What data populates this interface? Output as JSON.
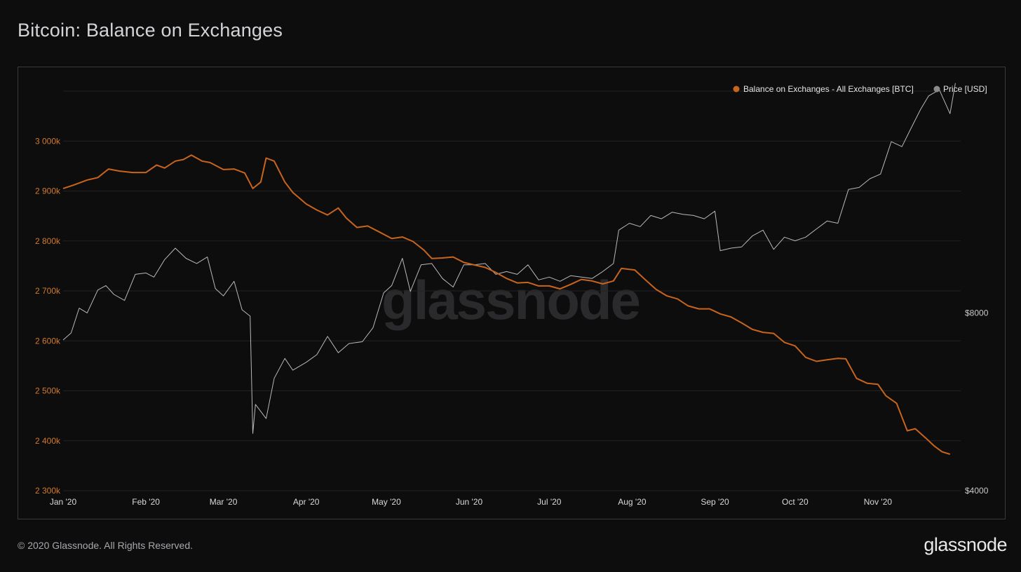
{
  "title": "Bitcoin: Balance on Exchanges",
  "footer": "© 2020 Glassnode. All Rights Reserved.",
  "brand": "glassnode",
  "watermark": "glassnode",
  "colors": {
    "balance": "#c8641c",
    "price": "#b9b9bc",
    "grid": "#232326",
    "background": "#0d0d0e"
  },
  "chart_data": {
    "type": "line",
    "title": "Bitcoin: Balance on Exchanges",
    "legend_placement": "top-right",
    "grid": true,
    "x_ticks": [
      "Jan '20",
      "Feb '20",
      "Mar '20",
      "Apr '20",
      "May '20",
      "Jun '20",
      "Jul '20",
      "Aug '20",
      "Sep '20",
      "Oct '20",
      "Nov '20"
    ],
    "x_tick_dates": [
      "2020-01-01",
      "2020-02-01",
      "2020-03-01",
      "2020-04-01",
      "2020-05-01",
      "2020-06-01",
      "2020-07-01",
      "2020-08-01",
      "2020-09-01",
      "2020-10-01",
      "2020-11-01"
    ],
    "y_left": {
      "ticks": [
        2300000,
        2400000,
        2500000,
        2600000,
        2700000,
        2800000,
        2900000,
        3000000
      ],
      "tick_labels": [
        "2 300k",
        "2 400k",
        "2 500k",
        "2 600k",
        "2 700k",
        "2 800k",
        "2 900k",
        "3 000k"
      ],
      "range": [
        2300000,
        3100000
      ]
    },
    "y_right": {
      "ticks": [
        4000,
        8000
      ],
      "tick_labels": [
        "$4000",
        "$8000"
      ],
      "scale": "log",
      "range": [
        4000,
        19000
      ]
    },
    "series": [
      {
        "name": "Balance on Exchanges - All Exchanges [BTC]",
        "axis": "left",
        "color": "#c8641c",
        "points": [
          [
            "2020-01-01",
            2905000
          ],
          [
            "2020-01-05",
            2912000
          ],
          [
            "2020-01-10",
            2922000
          ],
          [
            "2020-01-14",
            2927000
          ],
          [
            "2020-01-18",
            2944000
          ],
          [
            "2020-01-22",
            2940000
          ],
          [
            "2020-01-27",
            2937000
          ],
          [
            "2020-02-01",
            2937000
          ],
          [
            "2020-02-05",
            2952000
          ],
          [
            "2020-02-08",
            2946000
          ],
          [
            "2020-02-12",
            2960000
          ],
          [
            "2020-02-15",
            2963000
          ],
          [
            "2020-02-18",
            2972000
          ],
          [
            "2020-02-22",
            2960000
          ],
          [
            "2020-02-25",
            2957000
          ],
          [
            "2020-03-01",
            2943000
          ],
          [
            "2020-03-05",
            2944000
          ],
          [
            "2020-03-09",
            2936000
          ],
          [
            "2020-03-12",
            2905000
          ],
          [
            "2020-03-15",
            2918000
          ],
          [
            "2020-03-17",
            2966000
          ],
          [
            "2020-03-20",
            2960000
          ],
          [
            "2020-03-24",
            2918000
          ],
          [
            "2020-03-27",
            2897000
          ],
          [
            "2020-04-01",
            2874000
          ],
          [
            "2020-04-05",
            2862000
          ],
          [
            "2020-04-09",
            2852000
          ],
          [
            "2020-04-13",
            2866000
          ],
          [
            "2020-04-16",
            2846000
          ],
          [
            "2020-04-20",
            2827000
          ],
          [
            "2020-04-24",
            2830000
          ],
          [
            "2020-04-28",
            2819000
          ],
          [
            "2020-05-03",
            2805000
          ],
          [
            "2020-05-07",
            2808000
          ],
          [
            "2020-05-11",
            2799000
          ],
          [
            "2020-05-15",
            2782000
          ],
          [
            "2020-05-18",
            2765000
          ],
          [
            "2020-05-22",
            2766000
          ],
          [
            "2020-05-26",
            2768000
          ],
          [
            "2020-05-30",
            2757000
          ],
          [
            "2020-06-03",
            2752000
          ],
          [
            "2020-06-07",
            2747000
          ],
          [
            "2020-06-11",
            2737000
          ],
          [
            "2020-06-15",
            2725000
          ],
          [
            "2020-06-19",
            2716000
          ],
          [
            "2020-06-23",
            2717000
          ],
          [
            "2020-06-27",
            2710000
          ],
          [
            "2020-07-01",
            2710000
          ],
          [
            "2020-07-05",
            2704000
          ],
          [
            "2020-07-09",
            2713000
          ],
          [
            "2020-07-13",
            2723000
          ],
          [
            "2020-07-17",
            2720000
          ],
          [
            "2020-07-21",
            2714000
          ],
          [
            "2020-07-25",
            2720000
          ],
          [
            "2020-07-28",
            2745000
          ],
          [
            "2020-08-02",
            2742000
          ],
          [
            "2020-08-06",
            2722000
          ],
          [
            "2020-08-10",
            2703000
          ],
          [
            "2020-08-14",
            2690000
          ],
          [
            "2020-08-18",
            2684000
          ],
          [
            "2020-08-22",
            2670000
          ],
          [
            "2020-08-26",
            2664000
          ],
          [
            "2020-08-30",
            2664000
          ],
          [
            "2020-09-03",
            2654000
          ],
          [
            "2020-09-07",
            2648000
          ],
          [
            "2020-09-11",
            2636000
          ],
          [
            "2020-09-15",
            2623000
          ],
          [
            "2020-09-19",
            2617000
          ],
          [
            "2020-09-23",
            2615000
          ],
          [
            "2020-09-27",
            2597000
          ],
          [
            "2020-10-01",
            2590000
          ],
          [
            "2020-10-05",
            2567000
          ],
          [
            "2020-10-09",
            2559000
          ],
          [
            "2020-10-13",
            2562000
          ],
          [
            "2020-10-17",
            2565000
          ],
          [
            "2020-10-20",
            2564000
          ],
          [
            "2020-10-24",
            2525000
          ],
          [
            "2020-10-28",
            2515000
          ],
          [
            "2020-11-01",
            2513000
          ],
          [
            "2020-11-04",
            2490000
          ],
          [
            "2020-11-08",
            2475000
          ],
          [
            "2020-11-12",
            2420000
          ],
          [
            "2020-11-15",
            2424000
          ],
          [
            "2020-11-19",
            2405000
          ],
          [
            "2020-11-22",
            2390000
          ],
          [
            "2020-11-25",
            2378000
          ],
          [
            "2020-11-28",
            2373000
          ]
        ]
      },
      {
        "name": "Price [USD]",
        "axis": "right",
        "color": "#b9b9bc",
        "points": [
          [
            "2020-01-01",
            7200
          ],
          [
            "2020-01-04",
            7400
          ],
          [
            "2020-01-07",
            8150
          ],
          [
            "2020-01-10",
            8000
          ],
          [
            "2020-01-14",
            8750
          ],
          [
            "2020-01-17",
            8900
          ],
          [
            "2020-01-20",
            8600
          ],
          [
            "2020-01-24",
            8400
          ],
          [
            "2020-01-28",
            9300
          ],
          [
            "2020-02-01",
            9350
          ],
          [
            "2020-02-04",
            9200
          ],
          [
            "2020-02-08",
            9850
          ],
          [
            "2020-02-12",
            10300
          ],
          [
            "2020-02-16",
            9900
          ],
          [
            "2020-02-20",
            9700
          ],
          [
            "2020-02-24",
            9950
          ],
          [
            "2020-02-27",
            8800
          ],
          [
            "2020-03-01",
            8550
          ],
          [
            "2020-03-05",
            9050
          ],
          [
            "2020-03-08",
            8100
          ],
          [
            "2020-03-11",
            7900
          ],
          [
            "2020-03-12",
            5000
          ],
          [
            "2020-03-13",
            5600
          ],
          [
            "2020-03-17",
            5300
          ],
          [
            "2020-03-20",
            6200
          ],
          [
            "2020-03-24",
            6700
          ],
          [
            "2020-03-27",
            6400
          ],
          [
            "2020-04-01",
            6600
          ],
          [
            "2020-04-05",
            6800
          ],
          [
            "2020-04-09",
            7300
          ],
          [
            "2020-04-13",
            6850
          ],
          [
            "2020-04-17",
            7100
          ],
          [
            "2020-04-22",
            7150
          ],
          [
            "2020-04-26",
            7550
          ],
          [
            "2020-04-30",
            8650
          ],
          [
            "2020-05-03",
            8900
          ],
          [
            "2020-05-07",
            9900
          ],
          [
            "2020-05-10",
            8700
          ],
          [
            "2020-05-14",
            9650
          ],
          [
            "2020-05-18",
            9700
          ],
          [
            "2020-05-22",
            9150
          ],
          [
            "2020-05-26",
            8850
          ],
          [
            "2020-05-30",
            9650
          ],
          [
            "2020-06-03",
            9650
          ],
          [
            "2020-06-07",
            9700
          ],
          [
            "2020-06-11",
            9300
          ],
          [
            "2020-06-15",
            9400
          ],
          [
            "2020-06-19",
            9300
          ],
          [
            "2020-06-23",
            9650
          ],
          [
            "2020-06-27",
            9100
          ],
          [
            "2020-07-01",
            9200
          ],
          [
            "2020-07-05",
            9050
          ],
          [
            "2020-07-09",
            9250
          ],
          [
            "2020-07-13",
            9200
          ],
          [
            "2020-07-17",
            9150
          ],
          [
            "2020-07-21",
            9400
          ],
          [
            "2020-07-25",
            9700
          ],
          [
            "2020-07-27",
            11050
          ],
          [
            "2020-07-31",
            11350
          ],
          [
            "2020-08-04",
            11200
          ],
          [
            "2020-08-08",
            11700
          ],
          [
            "2020-08-12",
            11550
          ],
          [
            "2020-08-16",
            11850
          ],
          [
            "2020-08-20",
            11750
          ],
          [
            "2020-08-24",
            11700
          ],
          [
            "2020-08-28",
            11550
          ],
          [
            "2020-09-01",
            11900
          ],
          [
            "2020-09-03",
            10200
          ],
          [
            "2020-09-07",
            10300
          ],
          [
            "2020-09-11",
            10350
          ],
          [
            "2020-09-15",
            10800
          ],
          [
            "2020-09-19",
            11050
          ],
          [
            "2020-09-23",
            10250
          ],
          [
            "2020-09-27",
            10750
          ],
          [
            "2020-10-01",
            10600
          ],
          [
            "2020-10-05",
            10750
          ],
          [
            "2020-10-09",
            11100
          ],
          [
            "2020-10-13",
            11450
          ],
          [
            "2020-10-17",
            11350
          ],
          [
            "2020-10-21",
            12950
          ],
          [
            "2020-10-25",
            13050
          ],
          [
            "2020-10-29",
            13500
          ],
          [
            "2020-11-02",
            13750
          ],
          [
            "2020-11-06",
            15600
          ],
          [
            "2020-11-10",
            15300
          ],
          [
            "2020-11-13",
            16300
          ],
          [
            "2020-11-17",
            17700
          ],
          [
            "2020-11-20",
            18650
          ],
          [
            "2020-11-24",
            19100
          ],
          [
            "2020-11-28",
            17400
          ],
          [
            "2020-11-30",
            19600
          ]
        ]
      }
    ]
  }
}
